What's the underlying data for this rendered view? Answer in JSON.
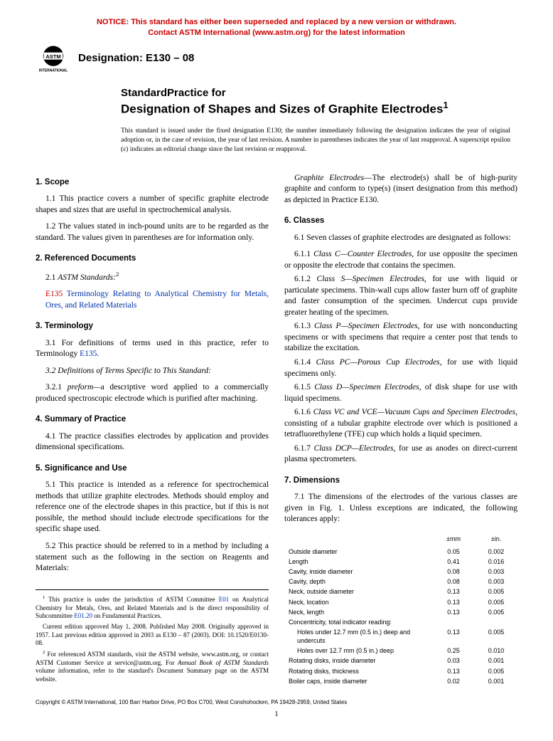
{
  "notice": {
    "line1": "NOTICE: This standard has either been superseded and replaced by a new version or withdrawn.",
    "line2": "Contact ASTM International (www.astm.org) for the latest information",
    "color": "#cc0000"
  },
  "logo": {
    "text_top": "INTERNATIONAL"
  },
  "designation": {
    "label": "Designation: E130 – 08"
  },
  "title": {
    "pre": "StandardPractice for",
    "main": "Designation of Shapes and Sizes of Graphite Electrodes",
    "sup": "1"
  },
  "issuance": "This standard is issued under the fixed designation E130; the number immediately following the designation indicates the year of original adoption or, in the case of revision, the year of last revision. A number in parentheses indicates the year of last reapproval. A superscript epsilon (ε) indicates an editorial change since the last revision or reapproval.",
  "left": {
    "s1": {
      "head": "1. Scope",
      "p1": "1.1 This practice covers a number of specific graphite electrode shapes and sizes that are useful in spectrochemical analysis.",
      "p2": "1.2 The values stated in inch-pound units are to be regarded as the standard. The values given in parentheses are for information only."
    },
    "s2": {
      "head": "2. Referenced Documents",
      "p1_pre": "2.1 ",
      "p1_ital": "ASTM Standards:",
      "p1_sup": "2",
      "link_id": "E135",
      "link_text": " Terminology Relating to Analytical Chemistry for Metals, Ores, and Related Materials"
    },
    "s3": {
      "head": "3. Terminology",
      "p1_a": "3.1 For definitions of terms used in this practice, refer to Terminology ",
      "p1_link": "E135",
      "p1_b": ".",
      "p2": "3.2 Definitions of Terms Specific to This Standard:",
      "p3_a": "3.2.1 ",
      "p3_term": "preform—",
      "p3_b": "a descriptive word applied to a commercially produced spectroscopic electrode which is purified after machining."
    },
    "s4": {
      "head": "4. Summary of Practice",
      "p1": "4.1 The practice classifies electrodes by application and provides dimensional specifications."
    },
    "s5": {
      "head": "5. Significance and Use",
      "p1": "5.1 This practice is intended as a reference for spectrochemical methods that utilize graphite electrodes. Methods should employ and reference one of the electrode shapes in this practice, but if this is not possible, the method should include electrode specifications for the specific shape used.",
      "p2": "5.2 This practice should be referred to in a method by including a statement such as the following in the section on Reagents and Materials:"
    },
    "footnotes": {
      "f1_a": " This practice is under the jurisdiction of ASTM Committee ",
      "f1_link1": "E01",
      "f1_b": " on Analytical Chemistry for Metals, Ores, and Related Materials and is the direct responsibility of Subcommittee ",
      "f1_link2": "E01.20",
      "f1_c": " on Fundamental Practices.",
      "f1_d": "Current edition approved May 1, 2008. Published May 2008. Originally approved in 1957. Last previous edition approved in 2003 as E130 – 87 (2003). DOI: 10.1520/E0130-08.",
      "f2_a": " For referenced ASTM standards, visit the ASTM website, www.astm.org, or contact ASTM Customer Service at service@astm.org. For ",
      "f2_ital": "Annual Book of ASTM Standards",
      "f2_b": " volume information, refer to the standard's Document Summary page on the ASTM website."
    }
  },
  "right": {
    "lead_ital": "Graphite Electrodes",
    "lead_rest": "—The electrode(s) shall be of high-purity graphite and conform to type(s) (insert designation from this method) as depicted in Practice E130.",
    "s6": {
      "head": "6. Classes",
      "p1": "6.1 Seven classes of graphite electrodes are designated as follows:",
      "items": [
        {
          "num": "6.1.1 ",
          "name": "Class C—Counter Electrodes,",
          "rest": " for use opposite the specimen or opposite the electrode that contains the specimen."
        },
        {
          "num": "6.1.2 ",
          "name": "Class S—Specimen Electrodes,",
          "rest": " for use with liquid or particulate specimens. Thin-wall cups allow faster burn off of graphite and faster consumption of the specimen. Undercut cups provide greater heating of the specimen."
        },
        {
          "num": "6.1.3 ",
          "name": "Class P—Specimen Electrodes,",
          "rest": " for use with nonconducting specimens or with specimens that require a center post that tends to stabilize the excitation."
        },
        {
          "num": "6.1.4 ",
          "name": "Class PC—Porous Cup Electrodes,",
          "rest": " for use with liquid specimens only."
        },
        {
          "num": "6.1.5 ",
          "name": "Class D—Specimen Electrodes,",
          "rest": " of disk shape for use with liquid specimens."
        },
        {
          "num": "6.1.6 ",
          "name": "Class VC and VCE—Vacuum Cups and Specimen Electrodes,",
          "rest": " consisting of a tubular graphite electrode over which is positioned a tetrafluorethylene (TFE) cup which holds a liquid specimen."
        },
        {
          "num": "6.1.7 ",
          "name": "Class DCP—Electrodes,",
          "rest": " for use as anodes on direct-current plasma spectrometers."
        }
      ]
    },
    "s7": {
      "head": "7. Dimensions",
      "p1": "7.1 The dimensions of the electrodes of the various classes are given in Fig. 1. Unless exceptions are indicated, the following tolerances apply:"
    },
    "tolerances": {
      "head_mm": "±mm",
      "head_in": "±in.",
      "rows": [
        {
          "label": "Outside diameter",
          "mm": "0.05",
          "in": "0.002",
          "indent": false
        },
        {
          "label": "Length",
          "mm": "0.41",
          "in": "0.016",
          "indent": false
        },
        {
          "label": "Cavity, inside diameter",
          "mm": "0.08",
          "in": "0.003",
          "indent": false
        },
        {
          "label": "Cavity, depth",
          "mm": "0.08",
          "in": "0.003",
          "indent": false
        },
        {
          "label": "Neck, outside diameter",
          "mm": "0.13",
          "in": "0.005",
          "indent": false
        },
        {
          "label": "Neck, location",
          "mm": "0.13",
          "in": "0.005",
          "indent": false
        },
        {
          "label": "Neck, length",
          "mm": "0.13",
          "in": "0.005",
          "indent": false
        },
        {
          "label": "Concentricity, total indicator reading:",
          "mm": "",
          "in": "",
          "indent": false
        },
        {
          "label": "Holes under 12.7 mm (0.5 in.) deep and undercuts",
          "mm": "0.13",
          "in": "0.005",
          "indent": true
        },
        {
          "label": "Holes over 12.7 mm (0.5 in.) deep",
          "mm": "0.25",
          "in": "0.010",
          "indent": true
        },
        {
          "label": "Rotating disks, inside diameter",
          "mm": "0.03",
          "in": "0.001",
          "indent": false
        },
        {
          "label": "Rotating disks, thickness",
          "mm": "0.13",
          "in": "0.005",
          "indent": false
        },
        {
          "label": "Boiler caps, inside diameter",
          "mm": "0.02",
          "in": "0.001",
          "indent": false
        }
      ]
    }
  },
  "copyright": "Copyright © ASTM International, 100 Barr Harbor Drive, PO Box C700, West Conshohocken, PA 19428-2959, United States",
  "pagenum": "1"
}
